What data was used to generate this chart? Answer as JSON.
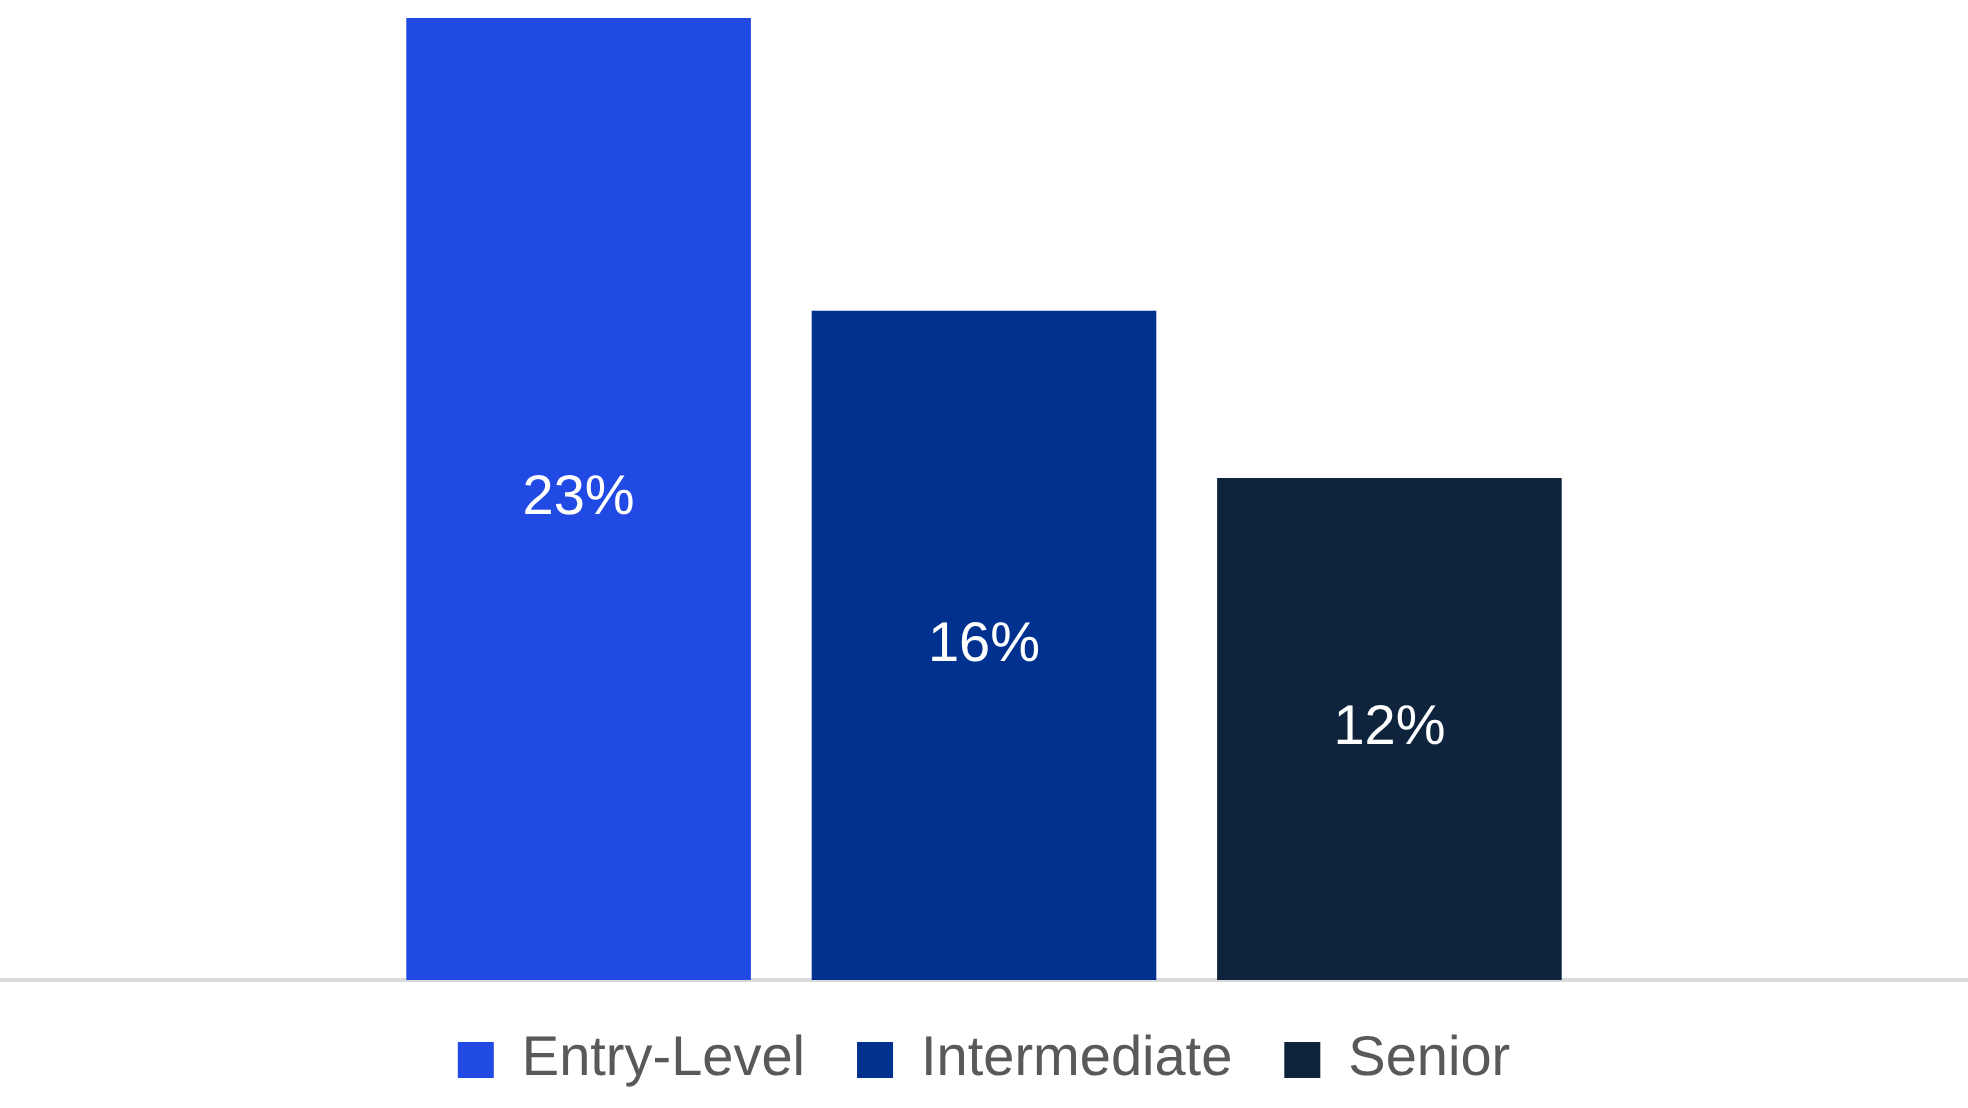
{
  "chart_data": {
    "type": "bar",
    "categories": [
      null
    ],
    "ylim": [
      0,
      23
    ],
    "legend": "bottom",
    "grid": false,
    "series": [
      {
        "name": "Entry-Level",
        "color": "#2149e3",
        "values": [
          23
        ],
        "value_labels": [
          "23%"
        ]
      },
      {
        "name": "Intermediate",
        "color": "#00318f",
        "values": [
          16
        ],
        "value_labels": [
          "16%"
        ]
      },
      {
        "name": "Senior",
        "color": "#0e233c",
        "values": [
          12
        ],
        "value_labels": [
          "12%"
        ]
      }
    ]
  }
}
